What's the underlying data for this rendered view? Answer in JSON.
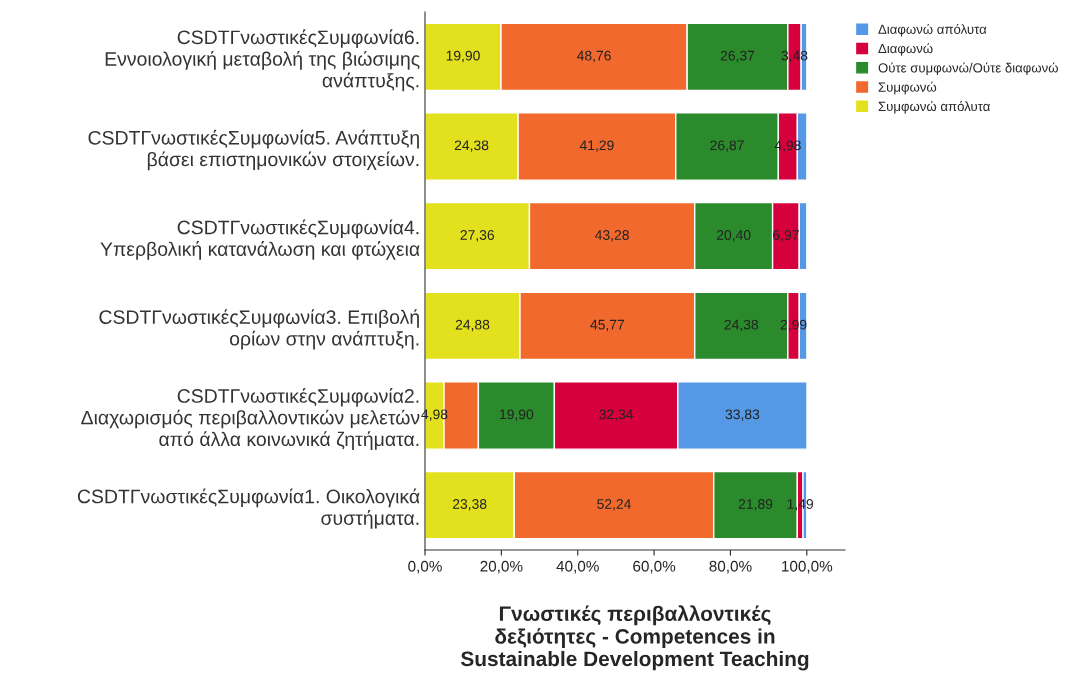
{
  "chart_data": {
    "type": "bar",
    "orientation": "horizontal",
    "stacked": true,
    "xlabel": "Γνωστικές περιβαλλοντικές\nδεξιότητες - Competences in\nSustainable Development Teaching",
    "categories": [
      "CSDTΓνωστικέςΣυμφωνία6.\nΕννοιολογική μεταβολή της βιώσιμης\nανάπτυξης.",
      "CSDTΓνωστικέςΣυμφωνία5. Ανάπτυξη\nβάσει επιστημονικών στοιχείων.",
      "CSDTΓνωστικέςΣυμφωνία4.\nΥπερβολική κατανάλωση και φτώχεια",
      "CSDTΓνωστικέςΣυμφωνία3. Επιβολή\nορίων στην ανάπτυξη.",
      "CSDTΓνωστικέςΣυμφωνία2.\nΔιαχωρισμός περιβαλλοντικών μελετών\nαπό άλλα κοινωνικά ζητήματα.",
      "CSDTΓνωστικέςΣυμφωνία1. Οικολογικά\nσυστήματα."
    ],
    "series": [
      {
        "name": "Συμφωνώ απόλυτα",
        "color": "#e3e01e",
        "values": [
          19.9,
          24.38,
          27.36,
          24.88,
          4.98,
          23.38
        ],
        "value_labels": [
          "19,90",
          "24,38",
          "27,36",
          "24,88",
          "4,98",
          "23,38"
        ]
      },
      {
        "name": "Συμφωνώ",
        "color": "#f2692d",
        "values": [
          48.76,
          41.29,
          43.28,
          45.77,
          9.0,
          52.24
        ],
        "value_labels": [
          "48,76",
          "41,29",
          "43,28",
          "45,77",
          null,
          "52,24"
        ]
      },
      {
        "name": "Ούτε συμφωνώ/Ούτε διαφωνώ",
        "color": "#2b8a2b",
        "values": [
          26.37,
          26.87,
          20.4,
          24.38,
          19.9,
          21.89
        ],
        "value_labels": [
          "26,37",
          "26,87",
          "20,40",
          "24,38",
          "19,90",
          "21,89"
        ]
      },
      {
        "name": "Διαφωνώ",
        "color": "#d6003c",
        "values": [
          3.48,
          4.98,
          6.97,
          2.99,
          32.34,
          1.49
        ],
        "value_labels": [
          "3,48",
          "4,98",
          "6,97",
          "2,99",
          "32,34",
          "1,49"
        ]
      },
      {
        "name": "Διαφωνώ απόλυτα",
        "color": "#5598e6",
        "values": [
          1.5,
          2.5,
          2.0,
          2.0,
          33.83,
          1.0
        ],
        "value_labels": [
          null,
          null,
          null,
          null,
          "33,83",
          null
        ]
      }
    ],
    "xlim": [
      0,
      110
    ],
    "xticks": [
      {
        "value": 0,
        "label": "0,0%"
      },
      {
        "value": 20,
        "label": "20,0%"
      },
      {
        "value": 40,
        "label": "40,0%"
      },
      {
        "value": 60,
        "label": "60,0%"
      },
      {
        "value": 80,
        "label": "80,0%"
      },
      {
        "value": 100,
        "label": "100,0%"
      }
    ],
    "legend": "top right",
    "grid": false
  }
}
